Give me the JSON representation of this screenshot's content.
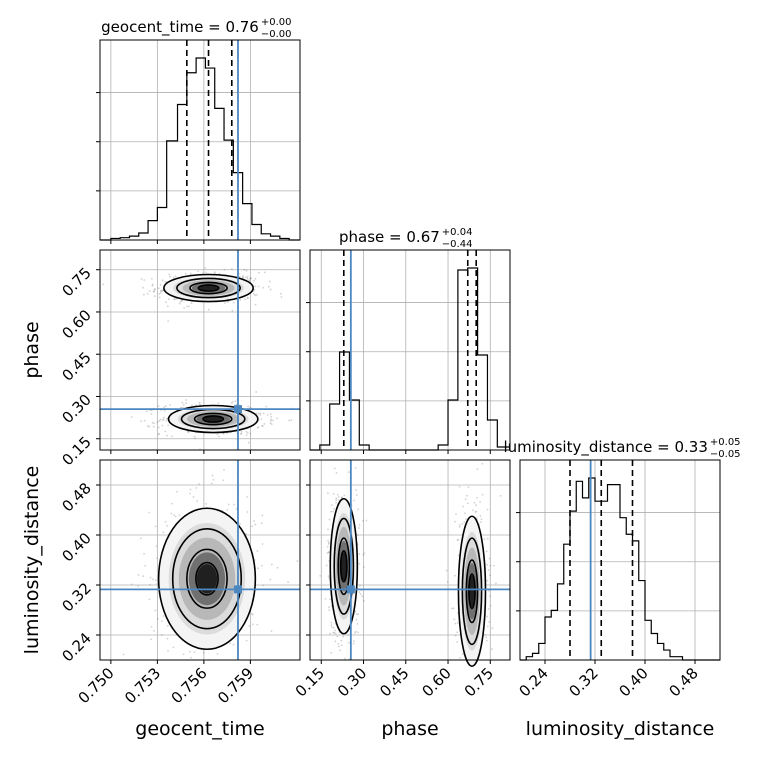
{
  "chart_data": {
    "type": "corner",
    "parameters": [
      "geocent_time",
      "phase",
      "luminosity_distance"
    ],
    "truth": {
      "geocent_time": 0.7582,
      "phase": 0.255,
      "luminosity_distance": 0.313
    },
    "colors": {
      "truth": "#4c87c0",
      "hist": "#000000",
      "grid": "#b0b0b0",
      "scatter": "#7f7f7f"
    },
    "grid": true,
    "diagonal": [
      {
        "param": "geocent_time",
        "title_main": "geocent_time = 0.76",
        "title_plus": "+0.00",
        "title_minus": "−0.00",
        "range": [
          0.7493,
          0.7622
        ],
        "quantiles": [
          0.7549,
          0.7563,
          0.7578
        ],
        "bin_edges": [
          0.7493,
          0.75,
          0.7506,
          0.7512,
          0.7518,
          0.7524,
          0.753,
          0.7536,
          0.7543,
          0.7549,
          0.7555,
          0.7561,
          0.7567,
          0.7573,
          0.7579,
          0.7585,
          0.7591,
          0.7597,
          0.7603,
          0.7609,
          0.7615,
          0.7622
        ],
        "counts": [
          0,
          2,
          3,
          5,
          9,
          25,
          42,
          128,
          175,
          216,
          235,
          222,
          170,
          129,
          87,
          47,
          20,
          8,
          5,
          2,
          0
        ]
      },
      {
        "param": "phase",
        "title_main": "phase = 0.67",
        "title_plus": "+0.04",
        "title_minus": "−0.44",
        "range": [
          0.11,
          0.82
        ],
        "quantiles": [
          0.23,
          0.67,
          0.7
        ],
        "bin_edges": [
          0.11,
          0.145,
          0.18,
          0.215,
          0.25,
          0.285,
          0.32,
          0.355,
          0.39,
          0.425,
          0.46,
          0.495,
          0.53,
          0.565,
          0.6,
          0.635,
          0.67,
          0.705,
          0.74,
          0.775,
          0.82
        ],
        "counts": [
          0,
          5,
          46,
          98,
          50,
          5,
          0,
          0,
          0,
          0,
          0,
          0,
          0,
          5,
          50,
          180,
          182,
          95,
          30,
          3
        ]
      },
      {
        "param": "luminosity_distance",
        "title_main": "luminosity_distance = 0.33",
        "title_plus": "+0.05",
        "title_minus": "−0.05",
        "range": [
          0.2,
          0.52
        ],
        "quantiles": [
          0.28,
          0.33,
          0.38
        ],
        "bin_edges": [
          0.2,
          0.21,
          0.22,
          0.23,
          0.24,
          0.25,
          0.26,
          0.27,
          0.28,
          0.29,
          0.3,
          0.31,
          0.32,
          0.33,
          0.34,
          0.35,
          0.36,
          0.37,
          0.38,
          0.39,
          0.4,
          0.41,
          0.42,
          0.43,
          0.44,
          0.45,
          0.46,
          0.47,
          0.48,
          0.49,
          0.5,
          0.51,
          0.52
        ],
        "counts": [
          0,
          1,
          2,
          5,
          13,
          15,
          23,
          35,
          45,
          54,
          49,
          55,
          48,
          48,
          53,
          53,
          43,
          38,
          36,
          24,
          12,
          8,
          5,
          3,
          1,
          1,
          0,
          0,
          0,
          0,
          0,
          0
        ]
      }
    ],
    "pairs": [
      {
        "x": "geocent_time",
        "y": "phase",
        "xrange": [
          0.7493,
          0.7622
        ],
        "yrange": [
          0.11,
          0.82
        ],
        "clusters": [
          {
            "cx": 0.7563,
            "cy": 0.685,
            "sx": 0.0012,
            "sy": 0.02
          },
          {
            "cx": 0.7566,
            "cy": 0.22,
            "sx": 0.0012,
            "sy": 0.02
          }
        ]
      },
      {
        "x": "geocent_time",
        "y": "luminosity_distance",
        "xrange": [
          0.7493,
          0.7622
        ],
        "yrange": [
          0.2,
          0.52
        ],
        "clusters": [
          {
            "cx": 0.7562,
            "cy": 0.33,
            "sx": 0.0013,
            "sy": 0.047
          }
        ]
      },
      {
        "x": "phase",
        "y": "luminosity_distance",
        "xrange": [
          0.11,
          0.82
        ],
        "yrange": [
          0.2,
          0.52
        ],
        "clusters": [
          {
            "cx": 0.23,
            "cy": 0.35,
            "sx": 0.02,
            "sy": 0.045
          },
          {
            "cx": 0.685,
            "cy": 0.31,
            "sx": 0.02,
            "sy": 0.05
          }
        ]
      }
    ],
    "ticks": {
      "geocent_time": [
        0.75,
        0.753,
        0.756,
        0.759
      ],
      "phase": [
        0.15,
        0.3,
        0.45,
        0.6,
        0.75
      ],
      "luminosity_distance": [
        0.24,
        0.32,
        0.4,
        0.48
      ]
    },
    "tick_labels": {
      "geocent_time": [
        "0.750",
        "0.753",
        "0.756",
        "0.759"
      ],
      "phase": [
        "0.15",
        "0.30",
        "0.45",
        "0.60",
        "0.75"
      ],
      "luminosity_distance": [
        "0.24",
        "0.32",
        "0.40",
        "0.48"
      ]
    },
    "axis_labels": {
      "geocent_time": "geocent_time",
      "phase": "phase",
      "luminosity_distance": "luminosity_distance"
    }
  }
}
